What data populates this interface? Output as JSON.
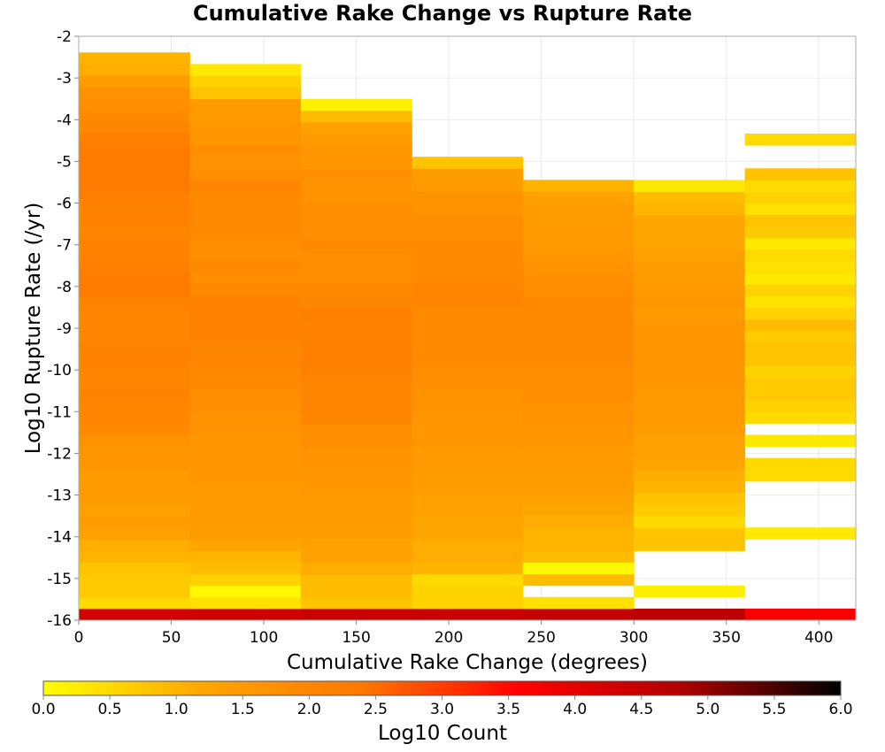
{
  "chart_data": {
    "type": "heatmap",
    "title": "Cumulative Rake Change vs Rupture Rate",
    "xlabel": "Cumulative Rake Change (degrees)",
    "ylabel": "Log10 Rupture Rate (/yr)",
    "xlim": [
      0,
      420
    ],
    "ylim": [
      -16,
      -2
    ],
    "x_ticks": [
      "0",
      "50",
      "100",
      "150",
      "200",
      "250",
      "300",
      "350",
      "400"
    ],
    "y_ticks": [
      "-2",
      "-3",
      "-4",
      "-5",
      "-6",
      "-7",
      "-8",
      "-9",
      "-10",
      "-11",
      "-12",
      "-13",
      "-14",
      "-15",
      "-16"
    ],
    "x_bin_edges": [
      0,
      60,
      120,
      180,
      240,
      300,
      360,
      420
    ],
    "y_bin_size": 0.2778,
    "y_bin_start": -16,
    "color_scale": {
      "label": "Log10 Count",
      "min": 0.0,
      "max": 6.0,
      "ticks": [
        "0.0",
        "0.5",
        "1.0",
        "1.5",
        "2.0",
        "2.5",
        "3.0",
        "3.5",
        "4.0",
        "4.5",
        "5.0",
        "5.5",
        "6.0"
      ],
      "colors": [
        "#ffff00",
        "#ffa500",
        "#ff7700",
        "#ff0000",
        "#b00000",
        "#000000"
      ]
    },
    "grid": true,
    "columns": [
      [
        4.3,
        0.5,
        0.7,
        0.7,
        0.8,
        1.0,
        1.1,
        1.3,
        1.4,
        1.3,
        1.4,
        1.5,
        1.5,
        1.6,
        1.6,
        1.7,
        1.9,
        2.0,
        2.0,
        2.1,
        2.0,
        2.0,
        2.1,
        2.1,
        2.0,
        2.0,
        2.0,
        2.1,
        2.3,
        2.3,
        2.2,
        2.1,
        2.1,
        2.0,
        2.1,
        2.1,
        2.2,
        2.3,
        2.3,
        2.3,
        2.3,
        2.2,
        2.0,
        1.9,
        1.8,
        1.7,
        1.4,
        1.1,
        1.0
      ],
      [
        4.3,
        0.4,
        0.1,
        0.6,
        0.9,
        1.0,
        1.2,
        1.4,
        1.4,
        1.5,
        1.5,
        1.5,
        1.6,
        1.6,
        1.6,
        1.6,
        1.7,
        1.7,
        1.8,
        1.8,
        1.9,
        1.9,
        2.0,
        2.0,
        2.1,
        2.1,
        2.1,
        2.1,
        1.9,
        1.8,
        1.9,
        1.8,
        1.8,
        1.9,
        1.9,
        1.9,
        1.9,
        2.0,
        1.8,
        1.7,
        1.8,
        1.6,
        1.6,
        1.5,
        1.5,
        0.8,
        0.6,
        0.3
      ],
      [
        4.4,
        0.8,
        0.9,
        0.9,
        1.1,
        1.3,
        1.3,
        1.4,
        1.4,
        1.5,
        1.5,
        1.6,
        1.6,
        1.7,
        1.7,
        1.8,
        1.8,
        2.0,
        2.0,
        2.0,
        2.0,
        2.1,
        2.2,
        2.2,
        2.1,
        2.1,
        2.2,
        2.0,
        1.9,
        1.8,
        1.8,
        1.8,
        1.9,
        1.8,
        1.8,
        1.8,
        1.7,
        1.7,
        1.8,
        1.6,
        1.6,
        1.5,
        1.3,
        0.9,
        0.2
      ],
      [
        4.4,
        0.6,
        0.6,
        0.5,
        1.0,
        1.1,
        1.1,
        1.2,
        1.2,
        1.3,
        1.3,
        1.4,
        1.4,
        1.5,
        1.5,
        1.6,
        1.6,
        1.6,
        1.7,
        1.7,
        1.8,
        1.8,
        1.9,
        1.9,
        1.9,
        1.9,
        1.9,
        2.0,
        2.0,
        1.9,
        1.9,
        1.9,
        1.9,
        1.8,
        1.8,
        1.7,
        1.7,
        1.5,
        1.4,
        0.8
      ],
      [
        4.5,
        0.4,
        null,
        0.9,
        0.1,
        0.9,
        1.0,
        1.0,
        1.1,
        1.2,
        1.3,
        1.4,
        1.4,
        1.5,
        1.5,
        1.6,
        1.6,
        1.7,
        1.7,
        1.8,
        1.8,
        1.8,
        1.9,
        1.9,
        1.9,
        1.9,
        1.9,
        1.9,
        1.8,
        1.8,
        1.7,
        1.6,
        1.5,
        1.5,
        1.4,
        1.4,
        1.3,
        1.0
      ],
      [
        4.6,
        null,
        0.2,
        null,
        null,
        null,
        0.8,
        0.8,
        0.5,
        0.7,
        0.8,
        1.0,
        1.1,
        1.2,
        1.3,
        1.3,
        1.4,
        1.5,
        1.5,
        1.5,
        1.6,
        1.6,
        1.6,
        1.6,
        1.6,
        1.6,
        1.5,
        1.6,
        1.5,
        1.4,
        1.4,
        1.3,
        1.2,
        1.2,
        1.2,
        1.0,
        0.9,
        0.3
      ],
      [
        3.7,
        null,
        null,
        null,
        null,
        null,
        null,
        0.3,
        null,
        null,
        null,
        null,
        0.5,
        0.5,
        null,
        0.3,
        null,
        0.5,
        0.6,
        0.7,
        0.7,
        0.6,
        0.8,
        0.8,
        0.7,
        0.9,
        0.6,
        0.4,
        0.6,
        0.3,
        0.4,
        0.5,
        0.3,
        0.7,
        0.8,
        0.4,
        0.6,
        0.5,
        0.8,
        null,
        null,
        0.5
      ]
    ]
  }
}
